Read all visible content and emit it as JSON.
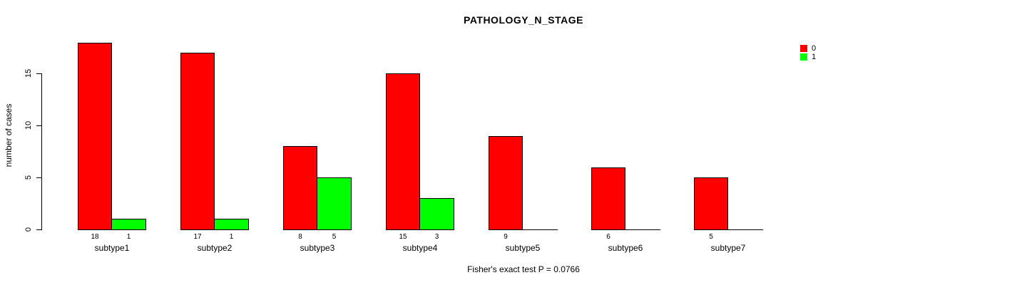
{
  "chart_data": {
    "type": "bar",
    "title": "PATHOLOGY_N_STAGE",
    "xlabel": "",
    "ylabel": "number of cases",
    "categories": [
      "subtype1",
      "subtype2",
      "subtype3",
      "subtype4",
      "subtype5",
      "subtype6",
      "subtype7"
    ],
    "series": [
      {
        "name": "0",
        "color": "#FF0000",
        "values": [
          18,
          17,
          8,
          15,
          9,
          6,
          5
        ]
      },
      {
        "name": "1",
        "color": "#00FF00",
        "values": [
          1,
          1,
          5,
          3,
          0,
          0,
          0
        ]
      }
    ],
    "yticks": [
      0,
      5,
      10,
      15
    ],
    "ylim": [
      0,
      18
    ],
    "grid": false,
    "legend_position": "top-right",
    "bar_value_labels": true,
    "annotation": "Fisher's exact test P = 0.0766"
  }
}
